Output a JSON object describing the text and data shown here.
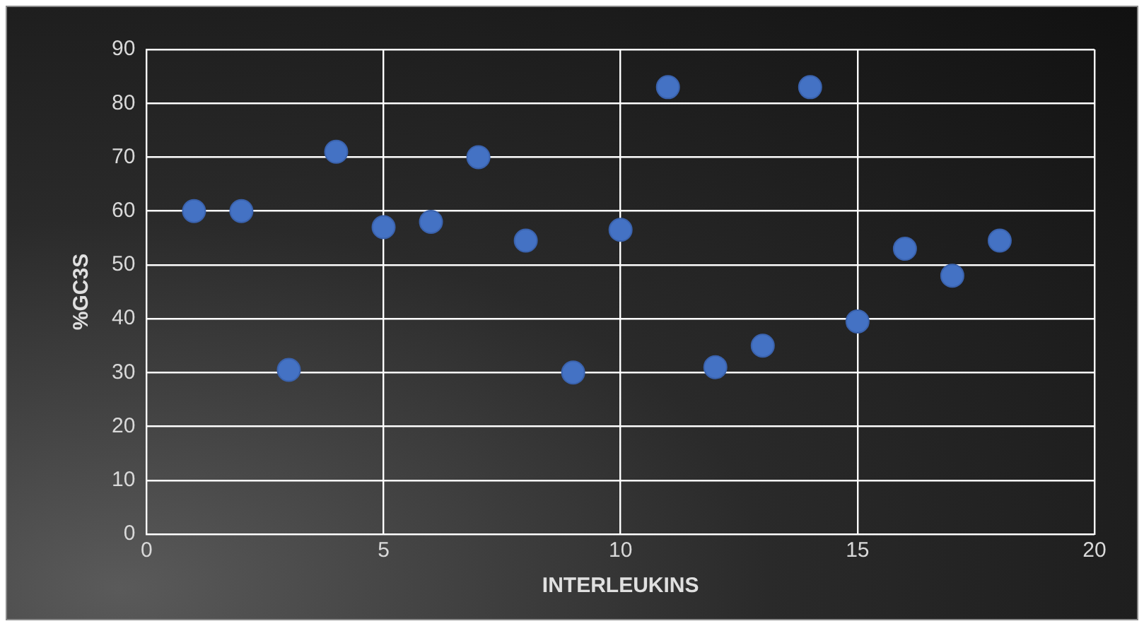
{
  "chart_data": {
    "type": "scatter",
    "xlabel": "INTERLEUKINS",
    "ylabel": "%GC3S",
    "x": [
      1,
      2,
      3,
      4,
      5,
      6,
      7,
      8,
      9,
      10,
      11,
      12,
      13,
      14,
      15,
      16,
      17,
      18
    ],
    "values": [
      60,
      60,
      30.5,
      71,
      57,
      58,
      70,
      54.5,
      30,
      56.5,
      83,
      31,
      35,
      83,
      39.5,
      53,
      48,
      54.5
    ],
    "color": "#4472c4",
    "marker": "circle",
    "xlim": [
      0,
      20
    ],
    "xticks": [
      0,
      5,
      10,
      15,
      20
    ],
    "ylim": [
      0,
      90
    ],
    "yticks": [
      0,
      10,
      20,
      30,
      40,
      50,
      60,
      70,
      80,
      90
    ],
    "grid": true,
    "legend": false
  }
}
